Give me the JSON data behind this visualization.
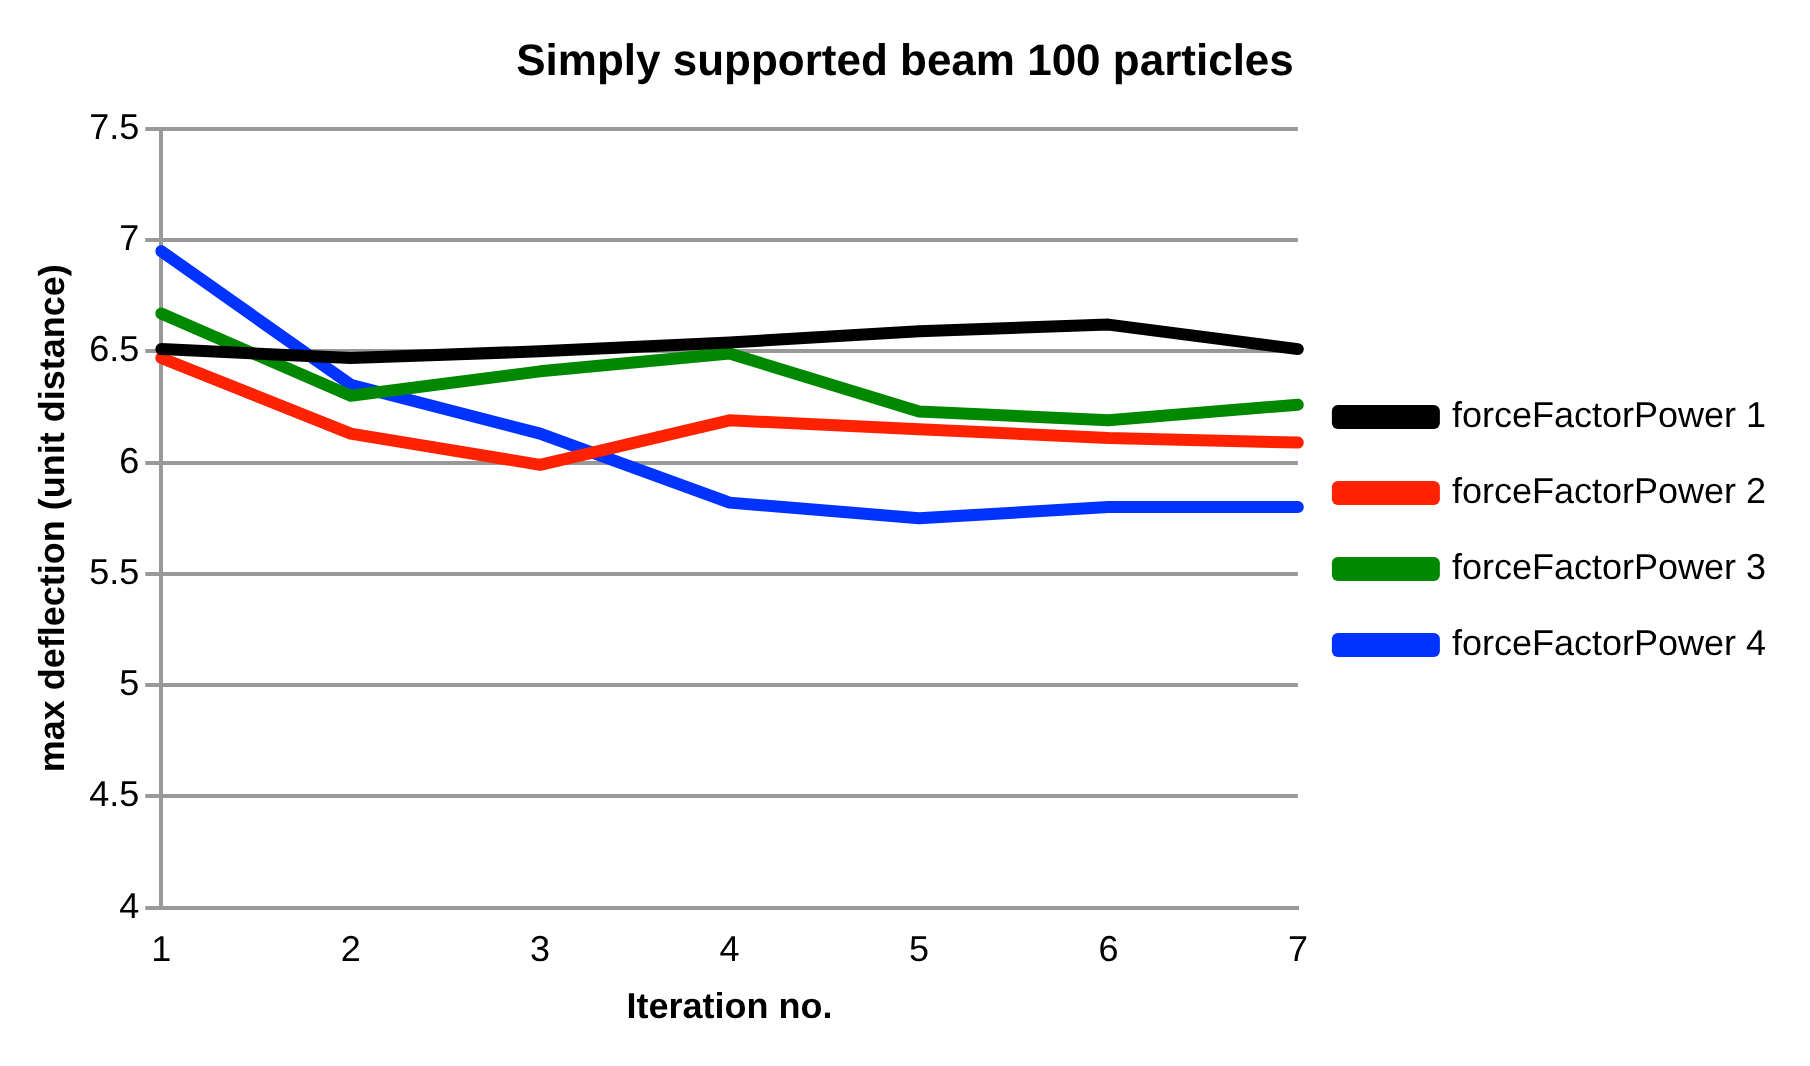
{
  "chart_data": {
    "type": "line",
    "title": "Simply supported beam 100 particles",
    "xlabel": "Iteration no.",
    "ylabel": "max deflection (unit distance)",
    "categories": [
      "1",
      "2",
      "3",
      "4",
      "5",
      "6",
      "7"
    ],
    "series": [
      {
        "name": "forceFactorPower 1",
        "color": "#000000",
        "values": [
          6.51,
          6.47,
          6.5,
          6.54,
          6.59,
          6.62,
          6.51
        ]
      },
      {
        "name": "forceFactorPower 2",
        "color": "#ff2200",
        "values": [
          6.47,
          6.13,
          5.99,
          6.19,
          6.15,
          6.11,
          6.09
        ]
      },
      {
        "name": "forceFactorPower 3",
        "color": "#008800",
        "values": [
          6.67,
          6.3,
          6.41,
          6.49,
          6.23,
          6.19,
          6.26
        ]
      },
      {
        "name": "forceFactorPower 4",
        "color": "#0033ff",
        "values": [
          6.95,
          6.35,
          6.13,
          5.82,
          5.75,
          5.8,
          5.8
        ]
      }
    ],
    "ylim": [
      4,
      7.5
    ],
    "yticks": [
      4,
      4.5,
      5,
      5.5,
      6,
      6.5,
      7,
      7.5
    ],
    "grid": "y",
    "legend": "right",
    "marker": "none",
    "line_style": "solid"
  }
}
